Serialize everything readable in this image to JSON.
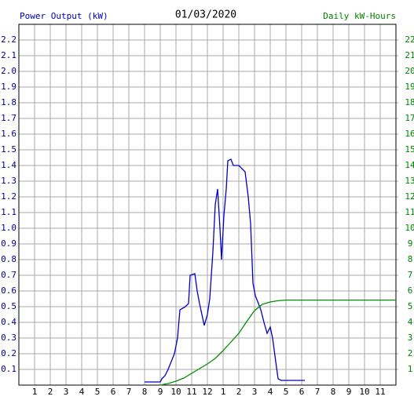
{
  "chart_data": {
    "type": "line",
    "title": "01/03/2020",
    "ylabel": "Power Output (kW)",
    "y2label": "Daily kW-Hours",
    "grid": true,
    "xlim": [
      0,
      24
    ],
    "xticks": [
      1,
      2,
      3,
      4,
      5,
      6,
      7,
      8,
      9,
      10,
      11,
      12,
      {
        "value": 13,
        "label": "1"
      },
      {
        "value": 14,
        "label": "2"
      },
      {
        "value": 15,
        "label": "3"
      },
      {
        "value": 16,
        "label": "4"
      },
      {
        "value": 17,
        "label": "5"
      },
      {
        "value": 18,
        "label": "6"
      },
      {
        "value": 19,
        "label": "7"
      },
      {
        "value": 20,
        "label": "8"
      },
      {
        "value": 21,
        "label": "9"
      },
      {
        "value": 22,
        "label": "10"
      },
      {
        "value": 23,
        "label": "11"
      }
    ],
    "ylim": [
      0,
      2.3
    ],
    "yticks": [
      0.1,
      0.2,
      0.3,
      0.4,
      0.5,
      0.6,
      0.7,
      0.8,
      0.9,
      {
        "value": 1,
        "label": "1.0"
      },
      1.1,
      1.2,
      1.3,
      1.4,
      1.5,
      1.6,
      1.7,
      1.8,
      1.9,
      {
        "value": 2,
        "label": "2.0"
      },
      2.1,
      2.2
    ],
    "y2lim": [
      0,
      23
    ],
    "y2ticks": [
      1,
      2,
      3,
      4,
      5,
      6,
      7,
      8,
      9,
      10,
      11,
      12,
      13,
      14,
      15,
      16,
      17,
      18,
      19,
      20,
      21,
      22
    ],
    "series": [
      {
        "color": "#0000c0",
        "x": [
          8.0,
          9.0,
          9.1,
          9.3,
          9.5,
          9.7,
          9.9,
          10.1,
          10.25,
          10.6,
          10.8,
          10.9,
          11.2,
          11.35,
          11.5,
          11.65,
          11.8,
          12.0,
          12.15,
          12.35,
          12.5,
          12.65,
          12.8,
          12.9,
          13.05,
          13.2,
          13.3,
          13.5,
          13.65,
          14.0,
          14.2,
          14.4,
          14.6,
          14.75,
          14.9,
          15.05,
          15.25,
          15.4,
          15.6,
          15.8,
          16.0,
          16.15,
          16.35,
          16.5,
          16.7,
          18.2
        ],
        "values": [
          0.02,
          0.02,
          0.04,
          0.06,
          0.1,
          0.15,
          0.2,
          0.3,
          0.48,
          0.5,
          0.52,
          0.7,
          0.71,
          0.6,
          0.52,
          0.45,
          0.38,
          0.45,
          0.55,
          0.85,
          1.15,
          1.25,
          1.0,
          0.8,
          1.08,
          1.25,
          1.43,
          1.44,
          1.4,
          1.4,
          1.38,
          1.36,
          1.2,
          1.03,
          0.65,
          0.57,
          0.52,
          0.48,
          0.4,
          0.33,
          0.37,
          0.3,
          0.15,
          0.04,
          0.03,
          0.03
        ]
      },
      {
        "color": "#009000",
        "axis": "y2",
        "x": [
          9.0,
          9.5,
          10.0,
          10.5,
          11.0,
          11.5,
          12.0,
          12.5,
          13.0,
          13.5,
          14.0,
          14.5,
          15.0,
          15.5,
          16.0,
          16.5,
          17.0,
          24
        ],
        "values": [
          0,
          0.1,
          0.25,
          0.45,
          0.75,
          1.05,
          1.35,
          1.7,
          2.2,
          2.75,
          3.3,
          4.05,
          4.75,
          5.15,
          5.3,
          5.38,
          5.42,
          5.42
        ]
      }
    ]
  }
}
